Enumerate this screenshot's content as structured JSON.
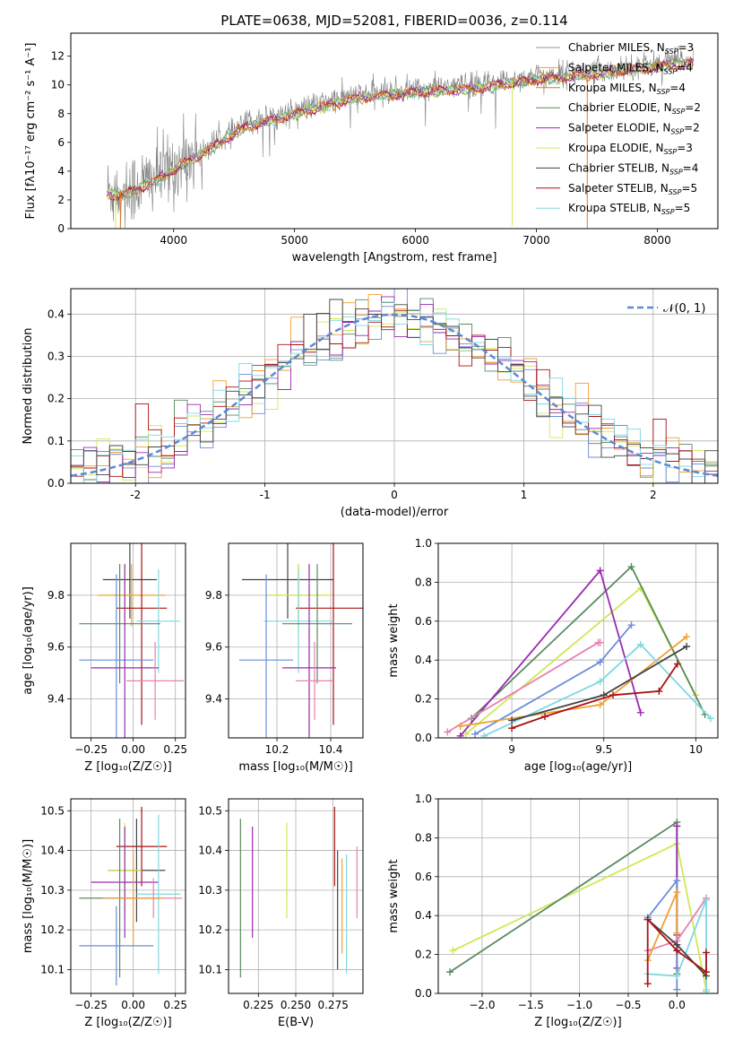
{
  "figure_title": "PLATE=0638, MJD=52081, FIBERID=0036, z=0.114",
  "colors": {
    "Chabrier MILES": "#999999",
    "Salpeter MILES": "#f0a030",
    "Kroupa MILES": "#e07818",
    "Chabrier ELODIE": "#5a8a60",
    "Salpeter ELODIE": "#9a2ab0",
    "Kroupa ELODIE": "#cfe855",
    "Chabrier STELIB": "#444444",
    "Salpeter STELIB": "#aa1111",
    "Kroupa STELIB": "#7fd8e0",
    "extra_blue": "#6a8ed8",
    "extra_pink": "#e880b0"
  },
  "chart_data": [
    {
      "id": "spectrum",
      "type": "line",
      "xlabel": "wavelength [Angstrom, rest frame]",
      "ylabel": "Flux [f",
      "ylabel_full": "Flux [fλ10⁻¹⁷ erg cm⁻² s⁻¹ A⁻¹]",
      "xlim": [
        3150,
        8500
      ],
      "ylim": [
        0,
        13.6
      ],
      "xticks": [
        4000,
        5000,
        6000,
        7000,
        8000
      ],
      "yticks": [
        0,
        2,
        4,
        6,
        8,
        10,
        12
      ],
      "grid": false,
      "legend": "top-right",
      "data_trend": {
        "x": [
          3450,
          3600,
          3900,
          4200,
          4600,
          5000,
          5500,
          6000,
          6500,
          7000,
          7500,
          8000,
          8300
        ],
        "y": [
          2.6,
          2.6,
          3.8,
          5.3,
          7.3,
          8.2,
          9.3,
          9.7,
          10.0,
          10.6,
          11.0,
          11.5,
          11.8
        ]
      },
      "legend_entries": [
        {
          "label": "Chabrier MILES, N",
          "sub": "SSP",
          "suffix": "=3"
        },
        {
          "label": "Salpeter MILES, N",
          "sub": "SSP",
          "suffix": "=4"
        },
        {
          "label": "Kroupa MILES, N",
          "sub": "SSP",
          "suffix": "=4"
        },
        {
          "label": "Chabrier ELODIE, N",
          "sub": "SSP",
          "suffix": "=2"
        },
        {
          "label": "Salpeter ELODIE, N",
          "sub": "SSP",
          "suffix": "=2"
        },
        {
          "label": "Kroupa ELODIE, N",
          "sub": "SSP",
          "suffix": "=3"
        },
        {
          "label": "Chabrier STELIB, N",
          "sub": "SSP",
          "suffix": "=4"
        },
        {
          "label": "Salpeter STELIB, N",
          "sub": "SSP",
          "suffix": "=5"
        },
        {
          "label": "Kroupa STELIB, N",
          "sub": "SSP",
          "suffix": "=5"
        }
      ]
    },
    {
      "id": "residuals",
      "type": "histogram",
      "xlabel": "(data-model)/error",
      "ylabel": "Normed distribution",
      "xlim": [
        -2.5,
        2.5
      ],
      "ylim": [
        0,
        0.46
      ],
      "xticks": [
        -2,
        -1,
        0,
        1,
        2
      ],
      "yticks": [
        0.0,
        0.1,
        0.2,
        0.3,
        0.4
      ],
      "grid": true,
      "legend": "top-right",
      "legend_label": "𝒩(0, 1)",
      "bin_width": 0.1,
      "normal_curve": {
        "mu": 0,
        "sigma": 1
      }
    },
    {
      "id": "age-vs-Z",
      "type": "errorbar",
      "xlabel": "Z [log",
      "xlabel_full": "Z [log₁₀(Z/Z☉)]",
      "ylabel": "age  [log₁₀(age/yr)]",
      "xlim": [
        -0.37,
        0.31
      ],
      "ylim": [
        9.25,
        10.0
      ],
      "xticks": [
        -0.25,
        0.0,
        0.25
      ],
      "xticklabels": [
        "−0.25",
        "0.00",
        "0.25"
      ],
      "yticks": [
        9.4,
        9.6,
        9.8
      ],
      "grid": true,
      "points": [
        {
          "c": "Chabrier STELIB",
          "x": -0.02,
          "y": 9.86,
          "xe": 0.16,
          "ye": 0.15
        },
        {
          "c": "Kroupa ELODIE",
          "x": -0.05,
          "y": 9.8,
          "xe": 0.08,
          "ye": 0.12
        },
        {
          "c": "Salpeter MILES",
          "x": -0.01,
          "y": 9.8,
          "xe": 0.2,
          "ye": 0.12
        },
        {
          "c": "Salpeter STELIB",
          "x": 0.05,
          "y": 9.75,
          "xe": 0.15,
          "ye": 0.45
        },
        {
          "c": "Kroupa STELIB",
          "x": 0.15,
          "y": 9.7,
          "xe": 0.13,
          "ye": 0.2
        },
        {
          "c": "Chabrier ELODIE",
          "x": -0.08,
          "y": 9.69,
          "xe": 0.24,
          "ye": 0.23
        },
        {
          "c": "extra_blue",
          "x": -0.1,
          "y": 9.55,
          "xe": 0.22,
          "ye": 0.33
        },
        {
          "c": "Salpeter ELODIE",
          "x": -0.05,
          "y": 9.52,
          "xe": 0.2,
          "ye": 0.4
        },
        {
          "c": "extra_pink",
          "x": 0.13,
          "y": 9.47,
          "xe": 0.17,
          "ye": 0.15
        }
      ]
    },
    {
      "id": "age-vs-mass",
      "type": "errorbar",
      "xlabel": "mass [log₁₀(M/M☉)]",
      "ylabel": "",
      "xlim": [
        10.02,
        10.52
      ],
      "ylim": [
        9.25,
        10.0
      ],
      "xticks": [
        10.2,
        10.4
      ],
      "yticks": [
        9.4,
        9.6,
        9.8
      ],
      "grid": true,
      "points": [
        {
          "c": "Chabrier STELIB",
          "x": 10.24,
          "y": 9.86,
          "xe": 0.17,
          "ye": 0.15
        },
        {
          "c": "Salpeter MILES",
          "x": 10.28,
          "y": 9.8,
          "xe": 0.11,
          "ye": 0.12
        },
        {
          "c": "Kroupa ELODIE",
          "x": 10.28,
          "y": 9.8,
          "xe": 0.12,
          "ye": 0.12
        },
        {
          "c": "Salpeter STELIB",
          "x": 10.41,
          "y": 9.75,
          "xe": 0.14,
          "ye": 0.45
        },
        {
          "c": "Kroupa STELIB",
          "x": 10.28,
          "y": 9.7,
          "xe": 0.13,
          "ye": 0.2
        },
        {
          "c": "Chabrier ELODIE",
          "x": 10.35,
          "y": 9.69,
          "xe": 0.13,
          "ye": 0.23
        },
        {
          "c": "extra_blue",
          "x": 10.16,
          "y": 9.55,
          "xe": 0.1,
          "ye": 0.33
        },
        {
          "c": "Salpeter ELODIE",
          "x": 10.32,
          "y": 9.52,
          "xe": 0.1,
          "ye": 0.4
        },
        {
          "c": "extra_pink",
          "x": 10.34,
          "y": 9.47,
          "xe": 0.07,
          "ye": 0.15
        }
      ]
    },
    {
      "id": "weight-vs-age",
      "type": "line",
      "xlabel": "age  [log₁₀(age/yr)]",
      "ylabel": "mass weight",
      "xlim": [
        8.6,
        10.12
      ],
      "ylim": [
        0,
        1.0
      ],
      "xticks": [
        9.0,
        9.5,
        10.0
      ],
      "yticks": [
        0.0,
        0.2,
        0.4,
        0.6,
        0.8,
        1.0
      ],
      "grid": true,
      "series": [
        {
          "c": "Kroupa ELODIE",
          "x": [
            8.75,
            9.7,
            10.0
          ],
          "y": [
            0.02,
            0.77,
            0.22
          ]
        },
        {
          "c": "Chabrier ELODIE",
          "x": [
            8.78,
            9.65,
            10.05
          ],
          "y": [
            0.1,
            0.88,
            0.12
          ]
        },
        {
          "c": "Salpeter ELODIE",
          "x": [
            8.72,
            9.48,
            9.7
          ],
          "y": [
            0.01,
            0.86,
            0.13
          ]
        },
        {
          "c": "extra_blue",
          "x": [
            8.8,
            9.48,
            9.65
          ],
          "y": [
            0.02,
            0.39,
            0.58
          ]
        },
        {
          "c": "extra_pink",
          "x": [
            8.65,
            9.47,
            9.48
          ],
          "y": [
            0.03,
            0.49,
            0.49
          ]
        },
        {
          "c": "Salpeter MILES",
          "x": [
            8.72,
            9.48,
            9.95
          ],
          "y": [
            0.06,
            0.17,
            0.52
          ]
        },
        {
          "c": "Kroupa STELIB",
          "x": [
            8.85,
            9.48,
            9.7,
            10.08
          ],
          "y": [
            0.01,
            0.29,
            0.48,
            0.1
          ]
        },
        {
          "c": "Chabrier STELIB",
          "x": [
            9.0,
            9.5,
            9.95
          ],
          "y": [
            0.09,
            0.22,
            0.47
          ]
        },
        {
          "c": "Salpeter STELIB",
          "x": [
            9.0,
            9.18,
            9.55,
            9.8,
            9.9
          ],
          "y": [
            0.05,
            0.11,
            0.22,
            0.24,
            0.38
          ]
        }
      ]
    },
    {
      "id": "mass-vs-Z",
      "type": "errorbar",
      "xlabel": "Z [log₁₀(Z/Z☉)]",
      "ylabel": "mass [log₁₀(M/M☉)]",
      "xlim": [
        -0.37,
        0.31
      ],
      "ylim": [
        10.04,
        10.53
      ],
      "xticks": [
        -0.25,
        0.0,
        0.25
      ],
      "xticklabels": [
        "−0.25",
        "0.00",
        "0.25"
      ],
      "yticks": [
        10.1,
        10.2,
        10.3,
        10.4,
        10.5
      ],
      "grid": true,
      "points": [
        {
          "c": "Salpeter STELIB",
          "x": 0.05,
          "y": 10.41,
          "xe": 0.15,
          "ye": 0.1
        },
        {
          "c": "Chabrier STELIB",
          "x": 0.02,
          "y": 10.35,
          "xe": 0.17,
          "ye": 0.13
        },
        {
          "c": "Kroupa ELODIE",
          "x": -0.05,
          "y": 10.35,
          "xe": 0.1,
          "ye": 0.12
        },
        {
          "c": "Salpeter ELODIE",
          "x": -0.05,
          "y": 10.32,
          "xe": 0.2,
          "ye": 0.14
        },
        {
          "c": "Kroupa STELIB",
          "x": 0.15,
          "y": 10.29,
          "xe": 0.13,
          "ye": 0.2
        },
        {
          "c": "Chabrier ELODIE",
          "x": -0.08,
          "y": 10.28,
          "xe": 0.24,
          "ye": 0.2
        },
        {
          "c": "extra_pink",
          "x": 0.12,
          "y": 10.28,
          "xe": 0.17,
          "ye": 0.05
        },
        {
          "c": "Salpeter MILES",
          "x": 0.0,
          "y": 10.28,
          "xe": 0.18,
          "ye": 0.12
        },
        {
          "c": "extra_blue",
          "x": -0.1,
          "y": 10.16,
          "xe": 0.22,
          "ye": 0.1
        }
      ]
    },
    {
      "id": "mass-vs-EBV",
      "type": "errorbar",
      "xlabel": "E(B-V)",
      "ylabel": "",
      "xlim": [
        0.205,
        0.295
      ],
      "ylim": [
        10.04,
        10.53
      ],
      "xticks": [
        0.225,
        0.25,
        0.275
      ],
      "xticklabels": [
        "0.225",
        "0.250",
        "0.275"
      ],
      "yticks": [
        10.1,
        10.2,
        10.3,
        10.4,
        10.5
      ],
      "grid": true,
      "points": [
        {
          "c": "Chabrier ELODIE",
          "x": 0.213,
          "y": 10.28,
          "xe": 0,
          "ye": 0.2
        },
        {
          "c": "Salpeter ELODIE",
          "x": 0.221,
          "y": 10.32,
          "xe": 0,
          "ye": 0.14
        },
        {
          "c": "Kroupa ELODIE",
          "x": 0.244,
          "y": 10.35,
          "xe": 0,
          "ye": 0.12
        },
        {
          "c": "Salpeter STELIB",
          "x": 0.276,
          "y": 10.41,
          "xe": 0,
          "ye": 0.1
        },
        {
          "c": "Chabrier STELIB",
          "x": 0.278,
          "y": 10.25,
          "xe": 0,
          "ye": 0.15
        },
        {
          "c": "Salpeter MILES",
          "x": 0.281,
          "y": 10.26,
          "xe": 0,
          "ye": 0.12
        },
        {
          "c": "Kroupa STELIB",
          "x": 0.284,
          "y": 10.24,
          "xe": 0,
          "ye": 0.15
        },
        {
          "c": "extra_pink",
          "x": 0.291,
          "y": 10.32,
          "xe": 0,
          "ye": 0.09
        }
      ]
    },
    {
      "id": "weight-vs-Z",
      "type": "line",
      "xlabel": "Z [log₁₀(Z/Z☉)]",
      "ylabel": "mass weight",
      "xlim": [
        -2.45,
        0.42
      ],
      "ylim": [
        0,
        1.0
      ],
      "xticks": [
        -2.0,
        -1.5,
        -1.0,
        -0.5,
        0.0
      ],
      "xticklabels": [
        "−2.0",
        "−1.5",
        "−1.0",
        "−0.5",
        "0.0"
      ],
      "yticks": [
        0.0,
        0.2,
        0.4,
        0.6,
        0.8,
        1.0
      ],
      "grid": true,
      "series": [
        {
          "c": "Kroupa ELODIE",
          "x": [
            -2.3,
            0.0,
            0.3
          ],
          "y": [
            0.22,
            0.77,
            0.02
          ]
        },
        {
          "c": "Chabrier ELODIE",
          "x": [
            -2.33,
            0.0,
            0.0
          ],
          "y": [
            0.11,
            0.88,
            0.1
          ]
        },
        {
          "c": "Salpeter ELODIE",
          "x": [
            0.0,
            0.0,
            0.0
          ],
          "y": [
            0.86,
            0.3,
            0.13
          ]
        },
        {
          "c": "extra_blue",
          "x": [
            -0.3,
            0.0,
            0.0
          ],
          "y": [
            0.39,
            0.58,
            0.02
          ]
        },
        {
          "c": "extra_pink",
          "x": [
            -0.3,
            0.0,
            0.3
          ],
          "y": [
            0.22,
            0.27,
            0.49
          ]
        },
        {
          "c": "Salpeter MILES",
          "x": [
            -0.3,
            0.0,
            0.0
          ],
          "y": [
            0.17,
            0.52,
            0.31
          ]
        },
        {
          "c": "Kroupa STELIB",
          "x": [
            -0.3,
            0.0,
            0.3,
            0.3
          ],
          "y": [
            0.1,
            0.09,
            0.48,
            0.01
          ]
        },
        {
          "c": "Chabrier STELIB",
          "x": [
            -0.3,
            0.0,
            0.3
          ],
          "y": [
            0.38,
            0.25,
            0.09
          ]
        },
        {
          "c": "Salpeter STELIB",
          "x": [
            -0.3,
            -0.3,
            0.0,
            0.3,
            0.3
          ],
          "y": [
            0.05,
            0.38,
            0.22,
            0.11,
            0.21
          ]
        }
      ]
    }
  ]
}
